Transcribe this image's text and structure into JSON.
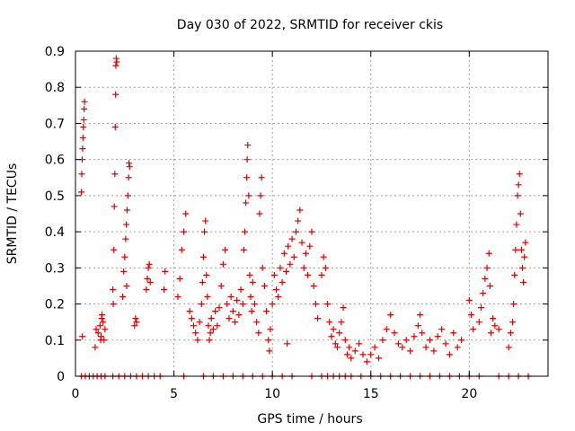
{
  "chart_data": {
    "type": "scatter",
    "title": "Day 030 of 2022, SRMTID for receiver ckis",
    "xlabel": "GPS time / hours",
    "ylabel": "SRMTID / TECUs",
    "xlim": [
      0,
      24
    ],
    "ylim": [
      0,
      0.9
    ],
    "xticks": [
      0,
      5,
      10,
      15,
      20
    ],
    "xtick_labels": [
      "0",
      "5",
      "10",
      "15",
      "20"
    ],
    "yticks": [
      0,
      0.1,
      0.2,
      0.3,
      0.4,
      0.5,
      0.6,
      0.7,
      0.8,
      0.9
    ],
    "ytick_labels": [
      "0",
      "0.1",
      "0.2",
      "0.3",
      "0.4",
      "0.5",
      "0.6",
      "0.7",
      "0.8",
      "0.9"
    ],
    "grid": true,
    "marker": "plus",
    "color": "#e00000",
    "series": [
      {
        "name": "SRMTID",
        "points": [
          [
            0.3,
            0.51
          ],
          [
            0.32,
            0.56
          ],
          [
            0.34,
            0.6
          ],
          [
            0.36,
            0.63
          ],
          [
            0.38,
            0.66
          ],
          [
            0.4,
            0.69
          ],
          [
            0.42,
            0.71
          ],
          [
            0.44,
            0.74
          ],
          [
            0.46,
            0.76
          ],
          [
            0.35,
            0.11
          ],
          [
            1.0,
            0.08
          ],
          [
            1.05,
            0.13
          ],
          [
            1.15,
            0.12
          ],
          [
            1.25,
            0.14
          ],
          [
            1.3,
            0.11
          ],
          [
            1.35,
            0.17
          ],
          [
            1.4,
            0.15
          ],
          [
            1.45,
            0.1
          ],
          [
            1.5,
            0.13
          ],
          [
            1.33,
            0.16
          ],
          [
            1.28,
            0.1
          ],
          [
            1.9,
            0.24
          ],
          [
            1.95,
            0.35
          ],
          [
            1.97,
            0.47
          ],
          [
            2.0,
            0.56
          ],
          [
            2.02,
            0.69
          ],
          [
            2.04,
            0.78
          ],
          [
            2.05,
            0.86
          ],
          [
            2.07,
            0.88
          ],
          [
            2.1,
            0.87
          ],
          [
            1.92,
            0.2
          ],
          [
            2.4,
            0.22
          ],
          [
            2.45,
            0.29
          ],
          [
            2.5,
            0.33
          ],
          [
            2.55,
            0.38
          ],
          [
            2.58,
            0.42
          ],
          [
            2.62,
            0.46
          ],
          [
            2.66,
            0.5
          ],
          [
            2.7,
            0.55
          ],
          [
            2.72,
            0.59
          ],
          [
            2.75,
            0.58
          ],
          [
            2.6,
            0.25
          ],
          [
            3.0,
            0.14
          ],
          [
            3.05,
            0.16
          ],
          [
            3.1,
            0.15
          ],
          [
            3.6,
            0.24
          ],
          [
            3.65,
            0.27
          ],
          [
            3.7,
            0.3
          ],
          [
            3.75,
            0.31
          ],
          [
            3.8,
            0.26
          ],
          [
            4.5,
            0.24
          ],
          [
            4.55,
            0.29
          ],
          [
            5.2,
            0.22
          ],
          [
            5.3,
            0.27
          ],
          [
            5.4,
            0.35
          ],
          [
            5.5,
            0.4
          ],
          [
            5.6,
            0.45
          ],
          [
            5.8,
            0.18
          ],
          [
            5.9,
            0.16
          ],
          [
            6.0,
            0.14
          ],
          [
            6.1,
            0.12
          ],
          [
            6.2,
            0.1
          ],
          [
            6.3,
            0.15
          ],
          [
            6.4,
            0.2
          ],
          [
            6.45,
            0.26
          ],
          [
            6.5,
            0.33
          ],
          [
            6.55,
            0.4
          ],
          [
            6.6,
            0.43
          ],
          [
            6.65,
            0.28
          ],
          [
            6.7,
            0.22
          ],
          [
            6.75,
            0.14
          ],
          [
            6.8,
            0.1
          ],
          [
            6.85,
            0.12
          ],
          [
            6.9,
            0.16
          ],
          [
            7.0,
            0.13
          ],
          [
            7.1,
            0.18
          ],
          [
            7.2,
            0.14
          ],
          [
            7.3,
            0.19
          ],
          [
            7.4,
            0.25
          ],
          [
            7.5,
            0.31
          ],
          [
            7.6,
            0.35
          ],
          [
            7.7,
            0.2
          ],
          [
            7.8,
            0.16
          ],
          [
            7.9,
            0.22
          ],
          [
            8.0,
            0.18
          ],
          [
            8.1,
            0.15
          ],
          [
            8.2,
            0.21
          ],
          [
            8.3,
            0.17
          ],
          [
            8.4,
            0.24
          ],
          [
            8.5,
            0.2
          ],
          [
            8.55,
            0.35
          ],
          [
            8.6,
            0.4
          ],
          [
            8.65,
            0.48
          ],
          [
            8.7,
            0.55
          ],
          [
            8.72,
            0.6
          ],
          [
            8.75,
            0.64
          ],
          [
            8.8,
            0.5
          ],
          [
            8.85,
            0.28
          ],
          [
            8.9,
            0.22
          ],
          [
            8.95,
            0.18
          ],
          [
            9.0,
            0.26
          ],
          [
            9.1,
            0.2
          ],
          [
            9.2,
            0.15
          ],
          [
            9.3,
            0.12
          ],
          [
            9.35,
            0.45
          ],
          [
            9.4,
            0.5
          ],
          [
            9.45,
            0.55
          ],
          [
            9.5,
            0.3
          ],
          [
            9.6,
            0.25
          ],
          [
            9.7,
            0.18
          ],
          [
            9.8,
            0.1
          ],
          [
            9.85,
            0.07
          ],
          [
            9.9,
            0.13
          ],
          [
            10.0,
            0.2
          ],
          [
            10.1,
            0.28
          ],
          [
            10.2,
            0.24
          ],
          [
            10.3,
            0.22
          ],
          [
            10.4,
            0.3
          ],
          [
            10.5,
            0.26
          ],
          [
            10.6,
            0.34
          ],
          [
            10.7,
            0.29
          ],
          [
            10.75,
            0.09
          ],
          [
            10.8,
            0.36
          ],
          [
            10.9,
            0.31
          ],
          [
            11.0,
            0.38
          ],
          [
            11.1,
            0.33
          ],
          [
            11.2,
            0.4
          ],
          [
            11.3,
            0.43
          ],
          [
            11.4,
            0.46
          ],
          [
            11.5,
            0.37
          ],
          [
            11.6,
            0.3
          ],
          [
            11.7,
            0.34
          ],
          [
            11.8,
            0.28
          ],
          [
            11.9,
            0.36
          ],
          [
            12.0,
            0.4
          ],
          [
            12.1,
            0.25
          ],
          [
            12.2,
            0.2
          ],
          [
            12.3,
            0.16
          ],
          [
            12.5,
            0.28
          ],
          [
            12.6,
            0.33
          ],
          [
            12.7,
            0.3
          ],
          [
            12.8,
            0.2
          ],
          [
            12.9,
            0.15
          ],
          [
            13.0,
            0.11
          ],
          [
            13.1,
            0.13
          ],
          [
            13.2,
            0.09
          ],
          [
            13.3,
            0.08
          ],
          [
            13.4,
            0.12
          ],
          [
            13.5,
            0.15
          ],
          [
            13.6,
            0.19
          ],
          [
            13.7,
            0.1
          ],
          [
            13.8,
            0.06
          ],
          [
            13.9,
            0.08
          ],
          [
            14.0,
            0.05
          ],
          [
            14.2,
            0.07
          ],
          [
            14.4,
            0.09
          ],
          [
            14.6,
            0.06
          ],
          [
            14.8,
            0.04
          ],
          [
            15.0,
            0.06
          ],
          [
            15.2,
            0.08
          ],
          [
            15.4,
            0.05
          ],
          [
            15.6,
            0.1
          ],
          [
            15.8,
            0.13
          ],
          [
            16.0,
            0.17
          ],
          [
            16.2,
            0.12
          ],
          [
            16.4,
            0.09
          ],
          [
            16.6,
            0.08
          ],
          [
            16.8,
            0.1
          ],
          [
            17.0,
            0.07
          ],
          [
            17.2,
            0.11
          ],
          [
            17.4,
            0.14
          ],
          [
            17.5,
            0.17
          ],
          [
            17.6,
            0.12
          ],
          [
            17.8,
            0.08
          ],
          [
            18.0,
            0.1
          ],
          [
            18.2,
            0.07
          ],
          [
            18.4,
            0.11
          ],
          [
            18.6,
            0.13
          ],
          [
            18.8,
            0.09
          ],
          [
            19.0,
            0.06
          ],
          [
            19.2,
            0.12
          ],
          [
            19.4,
            0.08
          ],
          [
            19.6,
            0.1
          ],
          [
            20.0,
            0.21
          ],
          [
            20.1,
            0.17
          ],
          [
            20.2,
            0.13
          ],
          [
            20.5,
            0.15
          ],
          [
            20.6,
            0.19
          ],
          [
            20.7,
            0.23
          ],
          [
            20.8,
            0.27
          ],
          [
            20.9,
            0.3
          ],
          [
            21.0,
            0.34
          ],
          [
            21.05,
            0.25
          ],
          [
            21.1,
            0.12
          ],
          [
            21.2,
            0.16
          ],
          [
            21.3,
            0.14
          ],
          [
            21.5,
            0.13
          ],
          [
            22.0,
            0.08
          ],
          [
            22.1,
            0.12
          ],
          [
            22.2,
            0.15
          ],
          [
            22.25,
            0.2
          ],
          [
            22.3,
            0.28
          ],
          [
            22.35,
            0.35
          ],
          [
            22.4,
            0.42
          ],
          [
            22.45,
            0.5
          ],
          [
            22.5,
            0.53
          ],
          [
            22.55,
            0.56
          ],
          [
            22.6,
            0.45
          ],
          [
            22.65,
            0.35
          ],
          [
            22.7,
            0.3
          ],
          [
            22.75,
            0.26
          ],
          [
            22.8,
            0.33
          ],
          [
            22.85,
            0.37
          ]
        ],
        "zero_x": [
          0.3,
          0.5,
          0.7,
          0.9,
          1.1,
          1.3,
          1.5,
          1.9,
          2.2,
          2.5,
          2.8,
          3.1,
          3.4,
          3.7,
          4.0,
          4.3,
          5.5,
          6.5,
          7.0,
          7.5,
          8.0,
          8.5,
          9.0,
          9.5,
          10.0,
          10.5,
          11.0,
          12.0,
          12.5,
          12.8,
          13.1,
          13.4,
          13.7,
          14.0,
          14.5,
          15.0,
          15.5,
          16.0,
          16.5,
          17.0,
          17.5,
          18.0,
          18.5,
          19.0,
          19.5,
          20.0,
          20.5,
          21.5,
          22.0,
          22.5,
          23.0
        ]
      }
    ]
  }
}
